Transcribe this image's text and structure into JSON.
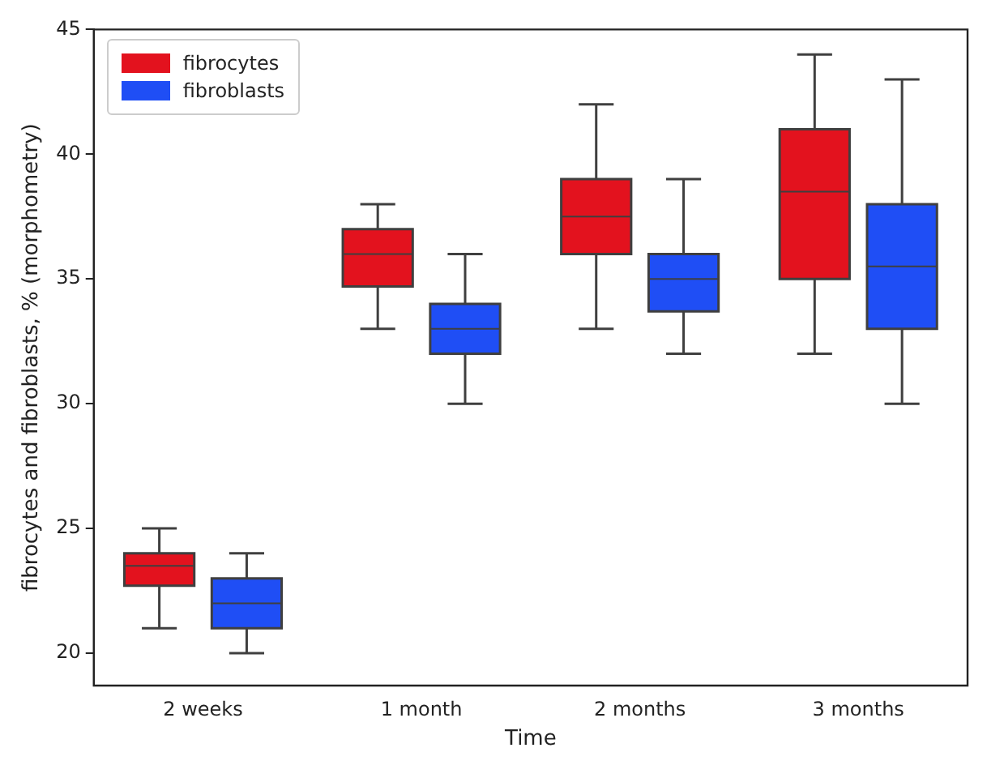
{
  "chart_data": {
    "type": "box",
    "xlabel": "Time",
    "ylabel": "fibrocytes and fibroblasts, % (morphometry)",
    "categories": [
      "2 weeks",
      "1 month",
      "2 months",
      "3 months"
    ],
    "ylim": [
      18.7,
      45
    ],
    "yticks": [
      20,
      25,
      30,
      35,
      40,
      45
    ],
    "grid": false,
    "legend": "top left",
    "series": [
      {
        "name": "fibrocytes",
        "color": "#e3121e",
        "boxes": [
          {
            "low": 21,
            "q1": 22.7,
            "median": 23.5,
            "q3": 24,
            "high": 25
          },
          {
            "low": 33,
            "q1": 34.7,
            "median": 36,
            "q3": 37,
            "high": 38
          },
          {
            "low": 33,
            "q1": 36,
            "median": 37.5,
            "q3": 39,
            "high": 42
          },
          {
            "low": 32,
            "q1": 35,
            "median": 38.5,
            "q3": 41,
            "high": 44
          }
        ]
      },
      {
        "name": "fibroblasts",
        "color": "#1f4ef5",
        "boxes": [
          {
            "low": 20,
            "q1": 21,
            "median": 22,
            "q3": 23,
            "high": 24
          },
          {
            "low": 30,
            "q1": 32,
            "median": 33,
            "q3": 34,
            "high": 36
          },
          {
            "low": 32,
            "q1": 33.7,
            "median": 35,
            "q3": 36,
            "high": 39
          },
          {
            "low": 30,
            "q1": 33,
            "median": 35.5,
            "q3": 38,
            "high": 43
          }
        ]
      }
    ]
  }
}
